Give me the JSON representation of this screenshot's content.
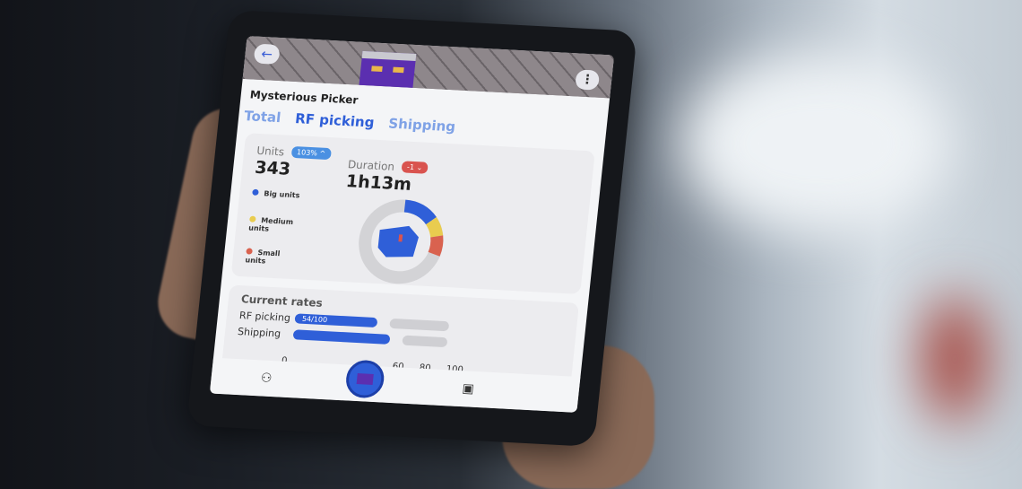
{
  "header": {
    "back_icon": "arrow-left-icon",
    "menu_icon": "more-vertical-icon",
    "avatar": "purple-robot-avatar"
  },
  "title": "Mysterious Picker",
  "tabs": [
    {
      "label": "Total"
    },
    {
      "label": "RF picking",
      "active": true
    },
    {
      "label": "Shipping"
    }
  ],
  "units": {
    "label": "Units",
    "value": "343",
    "badge": "103% ^",
    "badge_color": "#4a90e2"
  },
  "duration": {
    "label": "Duration",
    "value": "1h13m",
    "badge": "-1 ⌄",
    "badge_color": "#d9534f"
  },
  "legend": [
    {
      "label": "Big units",
      "color": "#2f5fd8"
    },
    {
      "label": "Medium units",
      "color": "#e9cc4f"
    },
    {
      "label": "Small units",
      "color": "#d9624f"
    }
  ],
  "rates": {
    "title": "Current rates",
    "rows": [
      {
        "label": "RF picking",
        "value": 54,
        "max": 100,
        "text": "54/100"
      },
      {
        "label": "Shipping",
        "value": 60,
        "max": 100
      }
    ],
    "ticks": [
      "0",
      "60",
      "80",
      "100"
    ]
  },
  "nav": {
    "left_icon": "team-icon",
    "center_icon": "avatar-button",
    "right_icon": "box-icon"
  }
}
